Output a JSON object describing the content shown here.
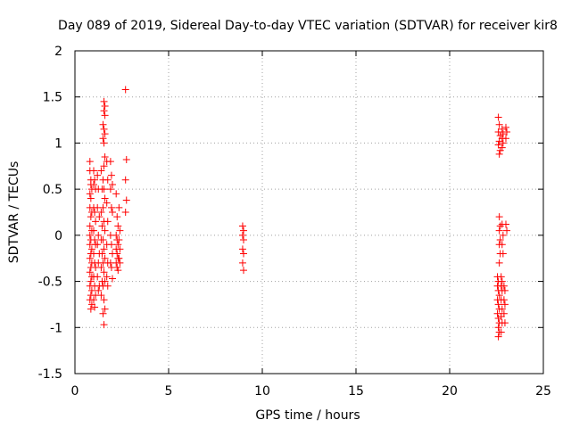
{
  "chart_data": {
    "type": "scatter",
    "title": "Day 089 of 2019, Sidereal Day-to-day VTEC variation (SDTVAR) for receiver kir8",
    "xlabel": "GPS time / hours",
    "ylabel": "SDTVAR / TECUs",
    "xlim": [
      0,
      25
    ],
    "ylim": [
      -1.5,
      2
    ],
    "xticks": [
      "0",
      "5",
      "10",
      "15",
      "20",
      "25"
    ],
    "yticks": [
      "-1.5",
      "-1",
      "-0.5",
      "0",
      "0.5",
      "1",
      "1.5",
      "2"
    ],
    "grid": true,
    "marker": "plus",
    "color": "#ff0000",
    "points": [
      [
        0.8,
        0.8
      ],
      [
        0.8,
        0.7
      ],
      [
        0.85,
        0.6
      ],
      [
        0.85,
        0.55
      ],
      [
        0.9,
        0.5
      ],
      [
        0.8,
        0.45
      ],
      [
        0.85,
        0.4
      ],
      [
        0.8,
        0.3
      ],
      [
        0.9,
        0.25
      ],
      [
        0.85,
        0.2
      ],
      [
        0.8,
        0.1
      ],
      [
        0.9,
        0.05
      ],
      [
        0.8,
        0.0
      ],
      [
        0.85,
        -0.05
      ],
      [
        0.8,
        -0.1
      ],
      [
        0.9,
        -0.15
      ],
      [
        0.85,
        -0.2
      ],
      [
        0.8,
        -0.25
      ],
      [
        0.9,
        -0.3
      ],
      [
        0.85,
        -0.35
      ],
      [
        0.8,
        -0.4
      ],
      [
        0.9,
        -0.45
      ],
      [
        0.85,
        -0.5
      ],
      [
        0.8,
        -0.55
      ],
      [
        0.9,
        -0.6
      ],
      [
        0.85,
        -0.65
      ],
      [
        0.8,
        -0.7
      ],
      [
        0.9,
        -0.75
      ],
      [
        0.85,
        -0.8
      ],
      [
        1.0,
        0.7
      ],
      [
        1.05,
        0.6
      ],
      [
        1.0,
        0.55
      ],
      [
        1.1,
        0.5
      ],
      [
        1.0,
        0.3
      ],
      [
        1.05,
        0.25
      ],
      [
        1.1,
        0.15
      ],
      [
        1.0,
        0.05
      ],
      [
        1.05,
        -0.05
      ],
      [
        1.1,
        -0.1
      ],
      [
        1.0,
        -0.2
      ],
      [
        1.05,
        -0.3
      ],
      [
        1.1,
        -0.35
      ],
      [
        1.0,
        -0.45
      ],
      [
        1.05,
        -0.55
      ],
      [
        1.1,
        -0.65
      ],
      [
        1.0,
        -0.7
      ],
      [
        1.05,
        -0.78
      ],
      [
        1.2,
        0.65
      ],
      [
        1.25,
        0.5
      ],
      [
        1.2,
        0.3
      ],
      [
        1.3,
        0.2
      ],
      [
        1.25,
        0.0
      ],
      [
        1.2,
        -0.1
      ],
      [
        1.3,
        -0.2
      ],
      [
        1.25,
        -0.3
      ],
      [
        1.2,
        -0.45
      ],
      [
        1.3,
        -0.55
      ],
      [
        1.25,
        -0.6
      ],
      [
        1.4,
        0.7
      ],
      [
        1.45,
        0.5
      ],
      [
        1.4,
        0.25
      ],
      [
        1.45,
        0.1
      ],
      [
        1.4,
        -0.05
      ],
      [
        1.45,
        -0.2
      ],
      [
        1.4,
        -0.35
      ],
      [
        1.45,
        -0.5
      ],
      [
        1.4,
        -0.65
      ],
      [
        1.55,
        1.45
      ],
      [
        1.6,
        1.4
      ],
      [
        1.55,
        1.35
      ],
      [
        1.6,
        1.3
      ],
      [
        1.5,
        1.2
      ],
      [
        1.55,
        1.15
      ],
      [
        1.6,
        1.1
      ],
      [
        1.5,
        1.05
      ],
      [
        1.55,
        1.0
      ],
      [
        1.6,
        0.85
      ],
      [
        1.55,
        0.75
      ],
      [
        1.5,
        0.6
      ],
      [
        1.55,
        0.5
      ],
      [
        1.6,
        0.4
      ],
      [
        1.5,
        0.3
      ],
      [
        1.55,
        0.15
      ],
      [
        1.6,
        0.05
      ],
      [
        1.5,
        -0.05
      ],
      [
        1.55,
        -0.15
      ],
      [
        1.6,
        -0.25
      ],
      [
        1.5,
        -0.3
      ],
      [
        1.55,
        -0.4
      ],
      [
        1.6,
        -0.5
      ],
      [
        1.5,
        -0.55
      ],
      [
        1.55,
        -0.7
      ],
      [
        1.6,
        -0.8
      ],
      [
        1.5,
        -0.85
      ],
      [
        1.55,
        -0.97
      ],
      [
        1.7,
        0.8
      ],
      [
        1.75,
        0.6
      ],
      [
        1.7,
        0.35
      ],
      [
        1.75,
        0.15
      ],
      [
        1.7,
        -0.1
      ],
      [
        1.75,
        -0.3
      ],
      [
        1.7,
        -0.45
      ],
      [
        1.75,
        -0.55
      ],
      [
        1.9,
        0.8
      ],
      [
        1.95,
        0.65
      ],
      [
        2.0,
        0.55
      ],
      [
        1.9,
        0.5
      ],
      [
        1.95,
        0.3
      ],
      [
        2.0,
        0.25
      ],
      [
        1.9,
        0.0
      ],
      [
        1.95,
        -0.1
      ],
      [
        2.0,
        -0.2
      ],
      [
        1.9,
        -0.3
      ],
      [
        1.95,
        -0.35
      ],
      [
        2.0,
        -0.47
      ],
      [
        2.2,
        0.45
      ],
      [
        2.25,
        0.2
      ],
      [
        2.3,
        0.1
      ],
      [
        2.2,
        0.0
      ],
      [
        2.25,
        -0.05
      ],
      [
        2.3,
        -0.1
      ],
      [
        2.2,
        -0.15
      ],
      [
        2.25,
        -0.2
      ],
      [
        2.3,
        -0.25
      ],
      [
        2.2,
        -0.3
      ],
      [
        2.25,
        -0.35
      ],
      [
        2.3,
        -0.38
      ],
      [
        2.35,
        0.3
      ],
      [
        2.4,
        0.05
      ],
      [
        2.35,
        -0.05
      ],
      [
        2.4,
        -0.15
      ],
      [
        2.35,
        -0.25
      ],
      [
        2.4,
        -0.3
      ],
      [
        2.7,
        1.58
      ],
      [
        2.75,
        0.82
      ],
      [
        2.7,
        0.6
      ],
      [
        2.75,
        0.38
      ],
      [
        2.7,
        0.25
      ],
      [
        8.95,
        0.1
      ],
      [
        9.0,
        0.05
      ],
      [
        8.95,
        0.0
      ],
      [
        9.0,
        -0.05
      ],
      [
        8.95,
        -0.15
      ],
      [
        9.0,
        -0.2
      ],
      [
        8.95,
        -0.3
      ],
      [
        9.0,
        -0.38
      ],
      [
        22.6,
        1.28
      ],
      [
        22.65,
        1.2
      ],
      [
        22.6,
        1.12
      ],
      [
        22.7,
        1.08
      ],
      [
        22.65,
        1.02
      ],
      [
        22.6,
        0.98
      ],
      [
        22.7,
        0.92
      ],
      [
        22.65,
        0.88
      ],
      [
        22.8,
        1.15
      ],
      [
        22.85,
        1.1
      ],
      [
        22.8,
        1.05
      ],
      [
        22.85,
        1.0
      ],
      [
        22.8,
        0.95
      ],
      [
        23.0,
        1.17
      ],
      [
        23.05,
        1.12
      ],
      [
        23.0,
        1.05
      ],
      [
        22.65,
        0.2
      ],
      [
        22.7,
        0.1
      ],
      [
        22.65,
        0.05
      ],
      [
        22.7,
        -0.05
      ],
      [
        22.65,
        -0.1
      ],
      [
        22.7,
        -0.2
      ],
      [
        22.65,
        -0.3
      ],
      [
        22.8,
        0.12
      ],
      [
        22.85,
        0.0
      ],
      [
        22.8,
        -0.1
      ],
      [
        22.85,
        -0.2
      ],
      [
        23.0,
        0.12
      ],
      [
        23.05,
        0.05
      ],
      [
        22.55,
        -0.45
      ],
      [
        22.6,
        -0.5
      ],
      [
        22.55,
        -0.55
      ],
      [
        22.6,
        -0.6
      ],
      [
        22.65,
        -0.65
      ],
      [
        22.55,
        -0.7
      ],
      [
        22.6,
        -0.75
      ],
      [
        22.65,
        -0.8
      ],
      [
        22.55,
        -0.85
      ],
      [
        22.6,
        -0.9
      ],
      [
        22.65,
        -0.95
      ],
      [
        22.6,
        -1.0
      ],
      [
        22.65,
        -1.05
      ],
      [
        22.6,
        -1.1
      ],
      [
        22.75,
        -0.45
      ],
      [
        22.8,
        -0.5
      ],
      [
        22.75,
        -0.55
      ],
      [
        22.8,
        -0.6
      ],
      [
        22.75,
        -0.7
      ],
      [
        22.8,
        -0.8
      ],
      [
        22.75,
        -0.88
      ],
      [
        22.8,
        -0.95
      ],
      [
        22.75,
        -1.05
      ],
      [
        22.9,
        -0.55
      ],
      [
        22.95,
        -0.6
      ],
      [
        22.9,
        -0.7
      ],
      [
        22.95,
        -0.75
      ],
      [
        22.9,
        -0.85
      ],
      [
        22.95,
        -0.95
      ]
    ]
  }
}
